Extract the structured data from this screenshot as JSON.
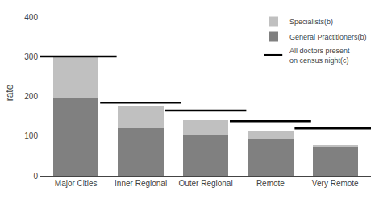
{
  "chart_data": {
    "type": "bar",
    "stacked": true,
    "categories": [
      "Major Cities",
      "Inner Regional",
      "Outer Regional",
      "Remote",
      "Very Remote"
    ],
    "series": [
      {
        "name": "General Practitioners(b)",
        "color": "#808080",
        "values": [
          197,
          120,
          105,
          93,
          73
        ]
      },
      {
        "name": "Specialists(b)",
        "color": "#c0c0c0",
        "values": [
          103,
          55,
          35,
          20,
          5
        ]
      },
      {
        "name": "All doctors present\non census night(c)",
        "color": "#000000",
        "type": "scatter",
        "marker": "dash",
        "values": [
          302,
          185,
          165,
          138,
          120
        ]
      }
    ],
    "ylabel": "rate",
    "ylim": [
      0,
      420
    ],
    "yticks": [
      0,
      100,
      200,
      300,
      400
    ],
    "grid": false,
    "legend": "upper right"
  }
}
